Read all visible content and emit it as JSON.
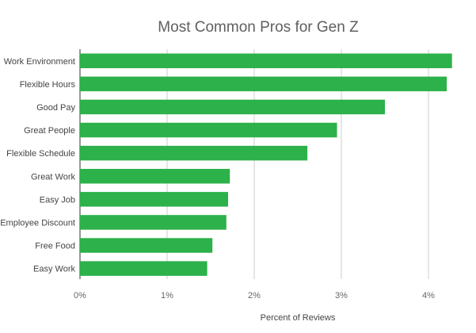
{
  "chart_data": {
    "type": "bar",
    "orientation": "horizontal",
    "title": "Most Common Pros for Gen Z",
    "xlabel": "Percent of Reviews",
    "ylabel": "",
    "categories": [
      "Work Environment",
      "Flexible Hours",
      "Good Pay",
      "Great People",
      "Flexible Schedule",
      "Great Work",
      "Easy Job",
      "Employee Discount",
      "Free Food",
      "Easy Work"
    ],
    "values": [
      4.27,
      4.21,
      3.5,
      2.95,
      2.61,
      1.72,
      1.7,
      1.68,
      1.52,
      1.46
    ],
    "unit": "%",
    "xlim": [
      0,
      4.3
    ],
    "xticks": [
      0,
      1,
      2,
      3,
      4
    ],
    "xtick_labels": [
      "0%",
      "1%",
      "2%",
      "3%",
      "4%"
    ],
    "bar_color": "#2db14a",
    "grid": true,
    "legend": "none"
  }
}
